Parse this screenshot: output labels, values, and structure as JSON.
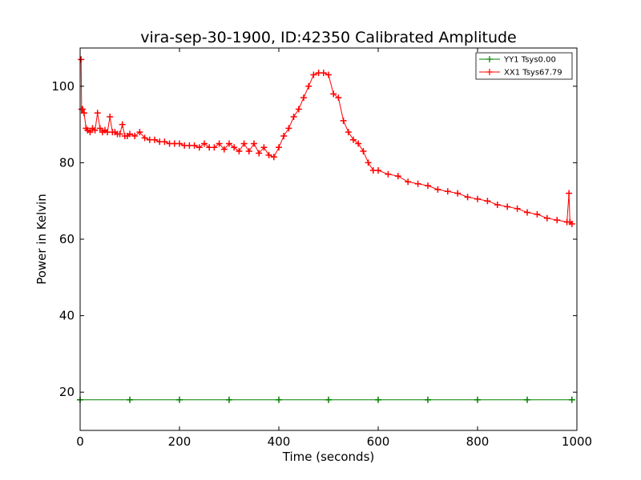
{
  "chart_data": {
    "type": "line",
    "title": "vira-sep-30-1900, ID:42350 Calibrated Amplitude",
    "xlabel": "Time (seconds)",
    "ylabel": "Power in Kelvin",
    "xlim": [
      0,
      1000
    ],
    "ylim": [
      10,
      110
    ],
    "xticks": [
      0,
      200,
      400,
      600,
      800,
      1000
    ],
    "yticks": [
      20,
      40,
      60,
      80,
      100
    ],
    "grid": false,
    "legend_position": "top-right",
    "marker": "+",
    "series": [
      {
        "name": "YY1 Tsys0.00",
        "color": "#008000",
        "x": [
          0,
          100,
          200,
          300,
          400,
          500,
          600,
          700,
          800,
          900,
          990
        ],
        "y": [
          18,
          18,
          18,
          18,
          18,
          18,
          18,
          18,
          18,
          18,
          18
        ]
      },
      {
        "name": "XX1 Tsys67.79",
        "color": "#ff0000",
        "x": [
          2,
          3,
          5,
          8,
          12,
          15,
          20,
          25,
          30,
          35,
          40,
          45,
          50,
          55,
          60,
          65,
          70,
          75,
          80,
          85,
          90,
          95,
          100,
          110,
          120,
          130,
          140,
          150,
          160,
          170,
          180,
          190,
          200,
          210,
          220,
          230,
          240,
          250,
          260,
          270,
          280,
          290,
          300,
          310,
          320,
          330,
          340,
          350,
          360,
          370,
          380,
          390,
          400,
          410,
          420,
          430,
          440,
          450,
          460,
          470,
          480,
          490,
          500,
          510,
          520,
          530,
          540,
          550,
          560,
          570,
          580,
          590,
          600,
          620,
          640,
          660,
          680,
          700,
          720,
          740,
          760,
          780,
          800,
          820,
          840,
          860,
          880,
          900,
          920,
          940,
          960,
          980,
          984,
          986,
          990
        ],
        "y": [
          107,
          94,
          94,
          93,
          89,
          88.5,
          88,
          89,
          88.5,
          93,
          89,
          88,
          88.5,
          88,
          92,
          88,
          88,
          87.5,
          87.5,
          90,
          87,
          87,
          87.5,
          87,
          88,
          86.5,
          86,
          86,
          85.5,
          85.5,
          85,
          85,
          85,
          84.5,
          84.5,
          84.5,
          84,
          85,
          84,
          84,
          85,
          83.5,
          85,
          84,
          83,
          85,
          83,
          85,
          82.5,
          84,
          82,
          81.5,
          84,
          87,
          89,
          92,
          94,
          97,
          100,
          103,
          103.5,
          103.5,
          103,
          98,
          97,
          91,
          88,
          86,
          85,
          83,
          80,
          78,
          78,
          77,
          76.5,
          75,
          74.5,
          74,
          73,
          72.5,
          72,
          71,
          70.5,
          70,
          69,
          68.5,
          68,
          67,
          66.5,
          65.5,
          65,
          64.5,
          72,
          64.5,
          64
        ]
      }
    ]
  }
}
